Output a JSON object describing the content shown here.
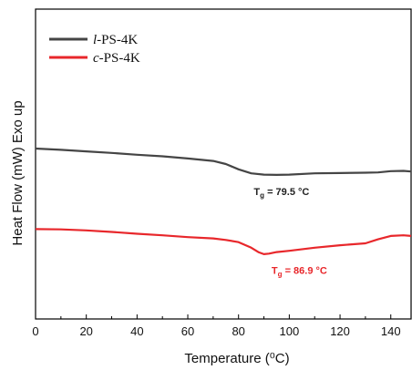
{
  "chart_data": {
    "type": "line",
    "xlabel": "Temperature (⁰C)",
    "ylabel": "Heat Flow (mW) Exo up",
    "xlim": [
      0,
      148
    ],
    "ylim": [
      0,
      1
    ],
    "x_ticks": [
      0,
      20,
      40,
      60,
      80,
      100,
      120,
      140
    ],
    "y_ticks_shown": false,
    "grid": false,
    "legend": "top-left",
    "series": [
      {
        "name": "l-PS-4K",
        "name_italic_prefix": "l",
        "name_suffix": "-PS-4K",
        "color": "#454545",
        "x": [
          0,
          10,
          20,
          30,
          40,
          50,
          60,
          70,
          75,
          80,
          85,
          90,
          95,
          100,
          110,
          120,
          130,
          135,
          140,
          145,
          148
        ],
        "y": [
          0.55,
          0.546,
          0.541,
          0.536,
          0.53,
          0.525,
          0.518,
          0.51,
          0.5,
          0.483,
          0.47,
          0.466,
          0.465,
          0.466,
          0.47,
          0.471,
          0.472,
          0.473,
          0.477,
          0.478,
          0.476
        ]
      },
      {
        "name": "c-PS-4K",
        "name_italic_prefix": "c",
        "name_suffix": "-PS-4K",
        "color": "#e8272b",
        "x": [
          0,
          10,
          20,
          30,
          40,
          50,
          60,
          70,
          75,
          80,
          85,
          88,
          90,
          92,
          95,
          100,
          110,
          120,
          130,
          135,
          140,
          145,
          148
        ],
        "y": [
          0.29,
          0.289,
          0.286,
          0.281,
          0.275,
          0.27,
          0.264,
          0.26,
          0.255,
          0.248,
          0.23,
          0.215,
          0.209,
          0.211,
          0.216,
          0.22,
          0.23,
          0.238,
          0.244,
          0.257,
          0.268,
          0.27,
          0.268
        ]
      }
    ],
    "annotations": [
      {
        "text_main": "T",
        "text_sub": "g",
        "text_rest": " = 79.5 °C",
        "x": 86,
        "y": 0.4,
        "color": "#222222"
      },
      {
        "text_main": "T",
        "text_sub": "g",
        "text_rest": " = 86.9 °C",
        "x": 93,
        "y": 0.145,
        "color": "#e8272b"
      }
    ]
  }
}
